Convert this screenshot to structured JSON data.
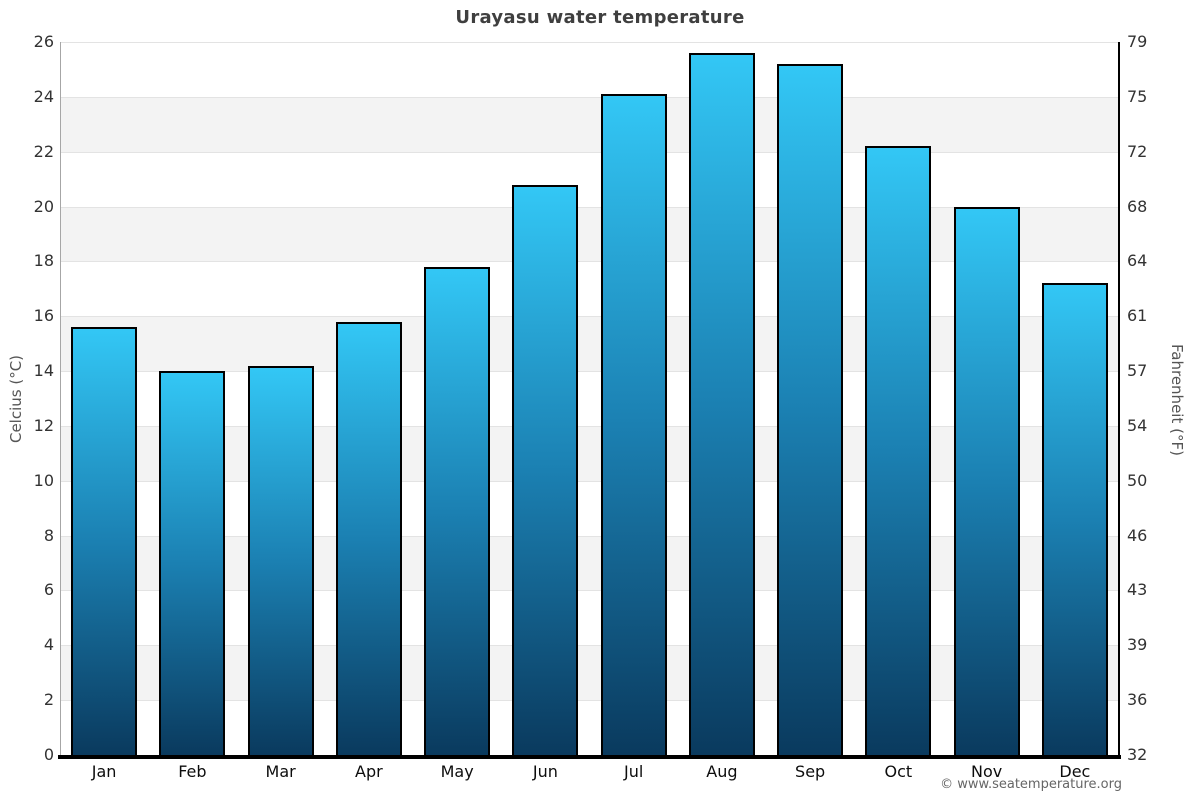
{
  "title": "Urayasu water temperature",
  "footer": "© www.seatemperature.org",
  "chart_data": {
    "type": "bar",
    "title": "Urayasu water temperature",
    "categories": [
      "Jan",
      "Feb",
      "Mar",
      "Apr",
      "May",
      "Jun",
      "Jul",
      "Aug",
      "Sep",
      "Oct",
      "Nov",
      "Dec"
    ],
    "values": [
      15.6,
      14.0,
      14.2,
      15.8,
      17.8,
      20.8,
      24.1,
      25.6,
      25.2,
      22.2,
      20.0,
      17.2
    ],
    "ylabel_left": "Celcius (°C)",
    "ylabel_right": "Fahrenheit (°F)",
    "ylim": [
      0,
      26
    ],
    "ytick_step_celsius": 2,
    "yticks_celsius": [
      26,
      24,
      22,
      20,
      18,
      16,
      14,
      12,
      10,
      8,
      6,
      4,
      2,
      0
    ],
    "yticks_fahrenheit": [
      79,
      75,
      72,
      68,
      64,
      61,
      57,
      54,
      50,
      46,
      43,
      39,
      36,
      32
    ],
    "grid": "alternating-horizontal-bands",
    "legend": "none",
    "colors": {
      "bar_gradient_top": "#33c7f5",
      "bar_gradient_mid": "#1b80b2",
      "bar_gradient_bottom": "#0a3a5e",
      "bar_border": "#000000",
      "band_fill": "#f3f3f3",
      "band_alt_fill": "#ffffff",
      "gridline": "#e3e3e3",
      "left_axis_line": "#a6a6a6",
      "right_axis_line": "#000000",
      "bottom_axis_line": "#000000",
      "title_text": "#3f3f3f",
      "tick_label_text": "#333333",
      "month_label_text": "#0d0d0d",
      "axis_title_text": "#555555",
      "footer_text": "#666666"
    }
  }
}
